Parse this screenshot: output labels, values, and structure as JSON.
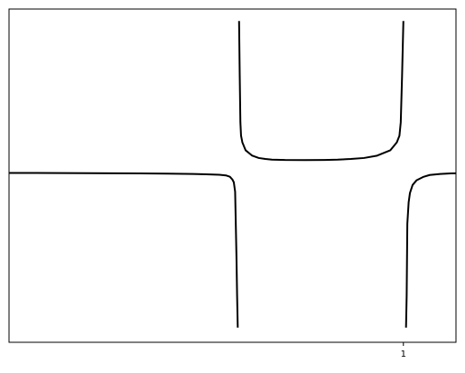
{
  "chart_data": {
    "type": "line",
    "title": "",
    "xlabel": "",
    "ylabel": "",
    "xlim": [
      -2,
      1.4
    ],
    "ylim": [
      -2.5,
      2.5
    ],
    "x_ticks": [
      {
        "value": 1,
        "label": "1"
      }
    ],
    "y_ticks": [],
    "grid": false,
    "series": [
      {
        "color": "#000000",
        "segments": [
          [
            [
              -2.0,
              0.04
            ],
            [
              -1.8,
              0.04
            ],
            [
              -1.6,
              0.039
            ],
            [
              -1.4,
              0.038
            ],
            [
              -1.2,
              0.036
            ],
            [
              -1.0,
              0.034
            ],
            [
              -0.8,
              0.031
            ],
            [
              -0.6,
              0.026
            ],
            [
              -0.5,
              0.021
            ],
            [
              -0.4,
              0.014
            ],
            [
              -0.35,
              0.004
            ],
            [
              -0.32,
              -0.016
            ],
            [
              -0.3,
              -0.06
            ],
            [
              -0.29,
              -0.1
            ],
            [
              -0.28,
              -0.24
            ],
            [
              -0.27,
              -1.2
            ],
            [
              -0.265,
              -1.8
            ],
            [
              -0.26,
              -2.28
            ]
          ],
          [
            [
              -0.25,
              2.32
            ],
            [
              -0.245,
              1.5
            ],
            [
              -0.24,
              0.8
            ],
            [
              -0.235,
              0.6
            ],
            [
              -0.225,
              0.5
            ],
            [
              -0.2,
              0.38
            ],
            [
              -0.15,
              0.3
            ],
            [
              -0.1,
              0.265
            ],
            [
              -0.05,
              0.25
            ],
            [
              0.0,
              0.24
            ],
            [
              0.1,
              0.235
            ],
            [
              0.25,
              0.234
            ],
            [
              0.4,
              0.236
            ],
            [
              0.5,
              0.24
            ],
            [
              0.6,
              0.25
            ],
            [
              0.7,
              0.265
            ],
            [
              0.8,
              0.3
            ],
            [
              0.9,
              0.38
            ],
            [
              0.95,
              0.5
            ],
            [
              0.97,
              0.6
            ],
            [
              0.98,
              0.8
            ],
            [
              0.99,
              1.5
            ],
            [
              1.0,
              2.32
            ]
          ],
          [
            [
              1.02,
              -2.28
            ],
            [
              1.025,
              -1.8
            ],
            [
              1.03,
              -0.72
            ],
            [
              1.04,
              -0.4
            ],
            [
              1.05,
              -0.26
            ],
            [
              1.07,
              -0.14
            ],
            [
              1.1,
              -0.07
            ],
            [
              1.15,
              -0.02
            ],
            [
              1.2,
              0.01
            ],
            [
              1.28,
              0.025
            ],
            [
              1.36,
              0.033
            ],
            [
              1.4,
              0.035
            ]
          ]
        ]
      }
    ]
  }
}
